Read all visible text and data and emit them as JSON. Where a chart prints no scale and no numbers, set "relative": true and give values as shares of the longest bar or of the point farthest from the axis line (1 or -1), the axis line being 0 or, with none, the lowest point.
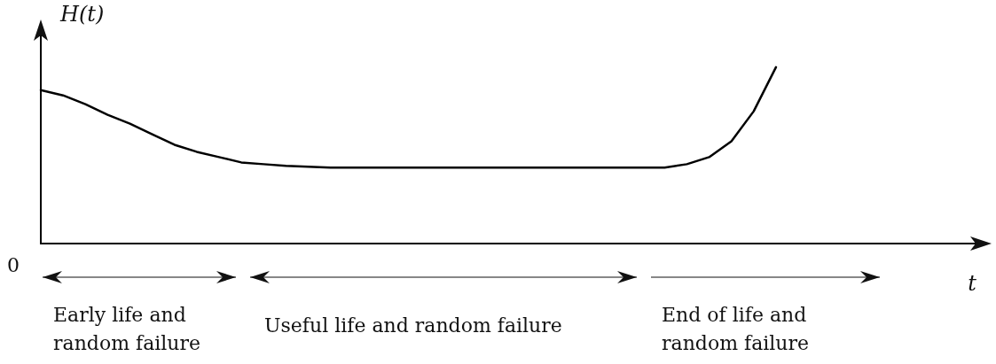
{
  "chart_data": {
    "type": "line",
    "relative": true,
    "xlabel": "t",
    "ylabel": "H(t)",
    "color": "#000000",
    "marker": "none",
    "line_style": "solid",
    "grid": false,
    "categories": [
      null,
      null,
      null,
      null,
      null,
      null,
      null,
      null,
      null,
      null,
      null,
      null,
      null,
      null,
      null,
      null,
      null,
      null,
      null,
      null,
      null,
      null,
      null,
      null,
      null,
      null,
      null,
      null,
      null,
      null,
      null,
      null,
      null,
      null,
      null,
      null,
      null,
      null,
      null,
      null,
      null,
      null,
      null
    ],
    "values": [
      0.87,
      0.84,
      0.79,
      0.73,
      0.68,
      0.62,
      0.56,
      0.52,
      0.49,
      0.46,
      0.45,
      0.44,
      0.435,
      0.43,
      0.43,
      0.43,
      0.43,
      0.43,
      0.43,
      0.43,
      0.43,
      0.43,
      0.43,
      0.43,
      0.43,
      0.43,
      0.43,
      0.43,
      0.43,
      0.45,
      0.49,
      0.58,
      0.75,
      1.0,
      null,
      null,
      null,
      null,
      null,
      null,
      null,
      null,
      null
    ],
    "annotations": [
      "0",
      "Early life and\nrandom failure",
      "Useful life and random failure",
      "End of life and\nrandom failure"
    ]
  }
}
